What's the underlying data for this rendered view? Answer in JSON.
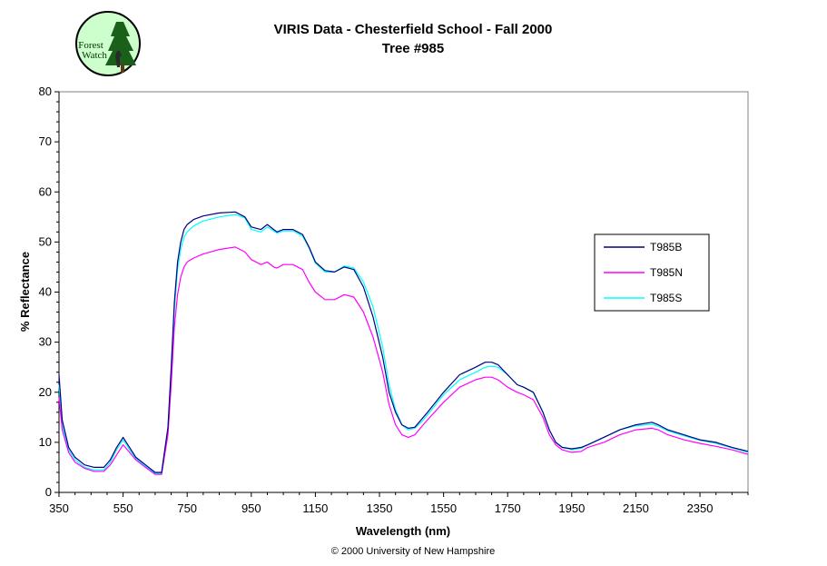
{
  "logo": {
    "text_line1": "Forest",
    "text_line2": "Watch",
    "icon": "forest-watch-logo"
  },
  "copyright": "© 2000 University of New Hampshire",
  "chart_data": {
    "type": "line",
    "title": "VIRIS Data - Chesterfield School - Fall 2000",
    "subtitle": "Tree #985",
    "xlabel": "Wavelength (nm)",
    "ylabel": "% Reflectance",
    "xlim": [
      350,
      2500
    ],
    "ylim": [
      0,
      80
    ],
    "xticks": [
      350,
      550,
      750,
      950,
      1150,
      1350,
      1550,
      1750,
      1950,
      2150,
      2350
    ],
    "yticks": [
      0,
      10,
      20,
      30,
      40,
      50,
      60,
      70,
      80
    ],
    "grid": false,
    "legend_position": "right",
    "series": [
      {
        "name": "T985B",
        "color": "#000080",
        "x": [
          350,
          360,
          380,
          400,
          430,
          460,
          490,
          510,
          530,
          550,
          570,
          590,
          620,
          650,
          670,
          690,
          700,
          710,
          720,
          730,
          740,
          750,
          770,
          800,
          850,
          900,
          930,
          950,
          980,
          1000,
          1020,
          1030,
          1050,
          1080,
          1110,
          1130,
          1150,
          1180,
          1210,
          1240,
          1270,
          1300,
          1330,
          1360,
          1380,
          1400,
          1420,
          1440,
          1460,
          1480,
          1500,
          1550,
          1600,
          1650,
          1680,
          1700,
          1720,
          1750,
          1780,
          1800,
          1830,
          1860,
          1880,
          1900,
          1920,
          1950,
          1980,
          2000,
          2050,
          2100,
          2150,
          2200,
          2220,
          2250,
          2300,
          2350,
          2400,
          2450,
          2500
        ],
        "y": [
          23.5,
          14.5,
          9.0,
          7.0,
          5.5,
          5.0,
          5.0,
          6.5,
          9.0,
          11.0,
          9.0,
          7.0,
          5.5,
          4.0,
          4.0,
          13.0,
          25.0,
          38.0,
          46.0,
          50.0,
          52.5,
          53.5,
          54.5,
          55.2,
          55.8,
          56.0,
          55.0,
          53.0,
          52.5,
          53.5,
          52.5,
          52.0,
          52.5,
          52.5,
          51.5,
          49.0,
          46.0,
          44.3,
          44.0,
          45.0,
          44.5,
          41.0,
          35.0,
          27.0,
          20.0,
          16.0,
          13.5,
          12.8,
          13.0,
          14.5,
          16.0,
          20.0,
          23.5,
          25.0,
          26.0,
          26.0,
          25.5,
          23.5,
          21.5,
          21.0,
          20.0,
          16.0,
          12.5,
          10.0,
          9.0,
          8.7,
          9.0,
          9.5,
          11.0,
          12.5,
          13.5,
          14.0,
          13.5,
          12.5,
          11.5,
          10.5,
          10.0,
          9.0,
          8.2
        ]
      },
      {
        "name": "T985N",
        "color": "#ff00ff",
        "x": [
          350,
          360,
          380,
          400,
          430,
          460,
          490,
          510,
          530,
          550,
          570,
          590,
          620,
          650,
          670,
          690,
          700,
          710,
          720,
          730,
          740,
          750,
          770,
          800,
          850,
          900,
          930,
          950,
          980,
          1000,
          1020,
          1030,
          1050,
          1080,
          1110,
          1130,
          1150,
          1180,
          1210,
          1240,
          1270,
          1300,
          1330,
          1360,
          1380,
          1400,
          1420,
          1440,
          1460,
          1480,
          1500,
          1550,
          1600,
          1650,
          1680,
          1700,
          1720,
          1750,
          1780,
          1800,
          1830,
          1860,
          1880,
          1900,
          1920,
          1950,
          1980,
          2000,
          2050,
          2100,
          2150,
          2200,
          2220,
          2250,
          2300,
          2350,
          2400,
          2450,
          2500
        ],
        "y": [
          19.0,
          12.5,
          8.0,
          6.0,
          4.8,
          4.2,
          4.2,
          5.5,
          7.5,
          9.5,
          8.0,
          6.5,
          5.0,
          3.6,
          3.6,
          11.5,
          21.5,
          33.0,
          39.5,
          43.0,
          45.0,
          46.0,
          46.8,
          47.6,
          48.5,
          49.0,
          48.0,
          46.5,
          45.5,
          46.0,
          45.0,
          44.8,
          45.5,
          45.5,
          44.5,
          42.0,
          40.0,
          38.5,
          38.5,
          39.5,
          39.0,
          36.0,
          31.0,
          24.0,
          17.5,
          13.5,
          11.5,
          11.0,
          11.5,
          13.0,
          14.5,
          18.0,
          21.0,
          22.5,
          23.0,
          23.0,
          22.5,
          21.0,
          20.0,
          19.5,
          18.5,
          15.0,
          11.5,
          9.5,
          8.5,
          8.0,
          8.2,
          9.0,
          10.0,
          11.5,
          12.5,
          12.8,
          12.5,
          11.5,
          10.5,
          9.8,
          9.2,
          8.5,
          7.6
        ]
      },
      {
        "name": "T985S",
        "color": "#00ffff",
        "x": [
          350,
          360,
          380,
          400,
          430,
          460,
          490,
          510,
          530,
          550,
          570,
          590,
          620,
          650,
          670,
          690,
          700,
          710,
          720,
          730,
          740,
          750,
          770,
          800,
          850,
          900,
          930,
          950,
          980,
          1000,
          1020,
          1030,
          1050,
          1080,
          1110,
          1130,
          1150,
          1180,
          1210,
          1240,
          1270,
          1300,
          1330,
          1360,
          1380,
          1400,
          1420,
          1440,
          1460,
          1480,
          1500,
          1550,
          1600,
          1650,
          1680,
          1700,
          1720,
          1750,
          1780,
          1800,
          1830,
          1860,
          1880,
          1900,
          1920,
          1950,
          1980,
          2000,
          2050,
          2100,
          2150,
          2200,
          2220,
          2250,
          2300,
          2350,
          2400,
          2450,
          2500
        ],
        "y": [
          21.5,
          13.5,
          8.5,
          6.5,
          5.0,
          4.5,
          4.5,
          6.0,
          8.5,
          10.5,
          8.5,
          6.8,
          5.2,
          3.8,
          3.8,
          12.5,
          24.0,
          36.5,
          44.5,
          48.5,
          51.0,
          52.0,
          53.2,
          54.2,
          55.0,
          55.5,
          54.8,
          52.5,
          52.0,
          53.0,
          52.2,
          51.8,
          52.2,
          52.2,
          51.2,
          48.8,
          45.8,
          44.0,
          44.0,
          45.2,
          44.8,
          42.0,
          37.0,
          29.0,
          21.5,
          16.5,
          13.5,
          12.5,
          12.8,
          14.0,
          15.5,
          19.5,
          22.5,
          24.0,
          25.0,
          25.2,
          25.0,
          23.5,
          21.5,
          21.0,
          20.0,
          16.0,
          12.5,
          10.0,
          9.0,
          8.5,
          8.8,
          9.5,
          11.0,
          12.5,
          13.3,
          13.6,
          13.2,
          12.3,
          11.3,
          10.4,
          9.8,
          8.9,
          8.0
        ]
      }
    ]
  }
}
